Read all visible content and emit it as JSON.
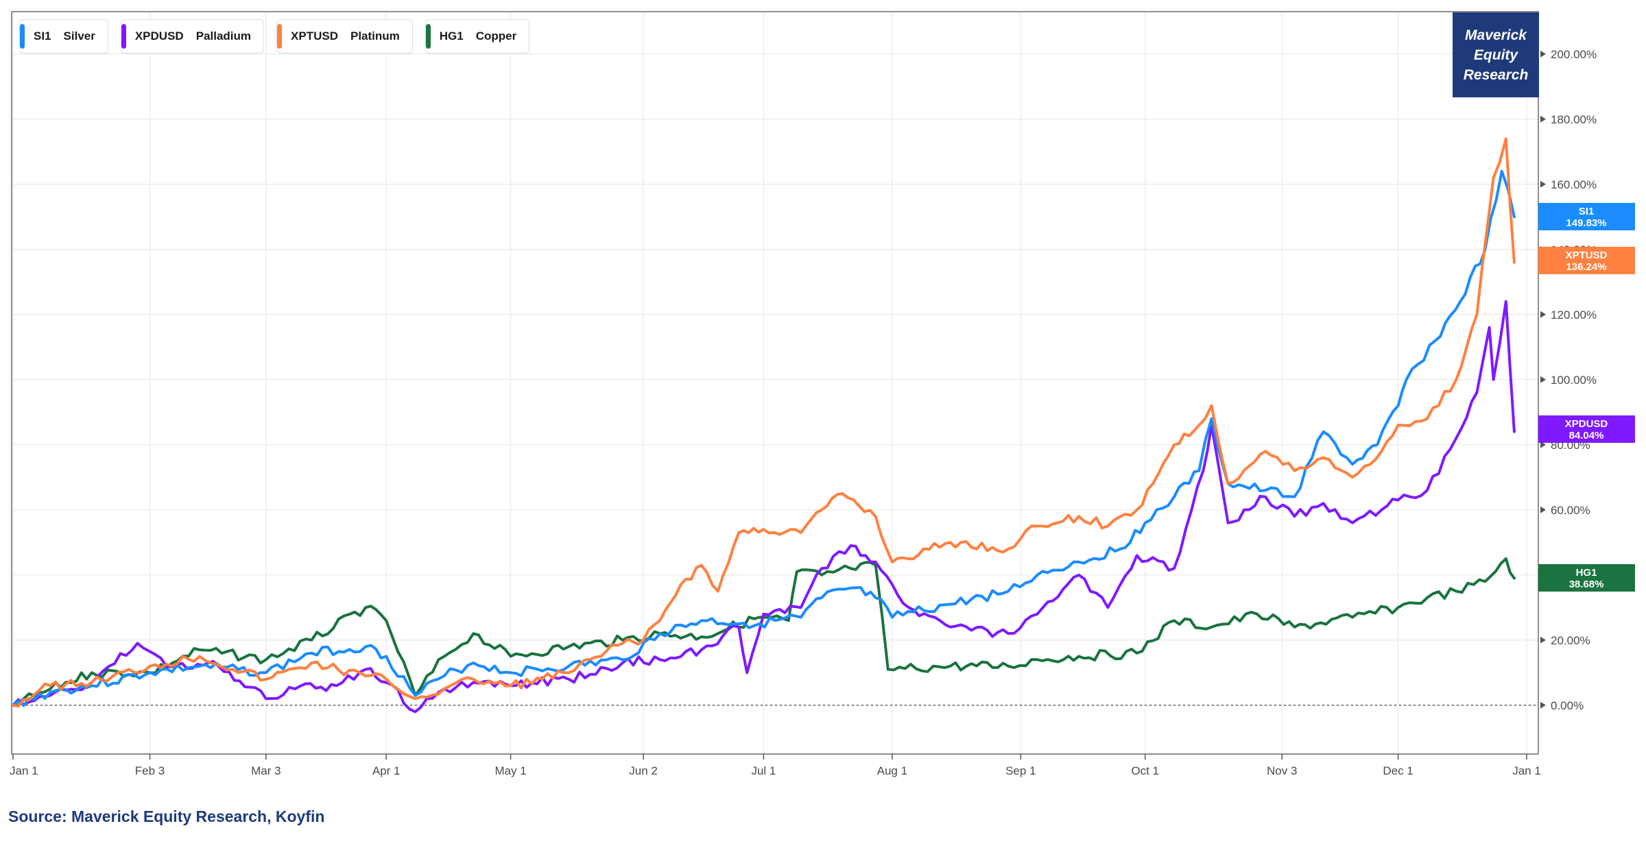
{
  "source_note": "Source: Maverick Equity Research, Koyfin",
  "brand": {
    "line1": "Maverick",
    "line2": "Equity",
    "line3": "Research"
  },
  "legend": [
    {
      "ticker": "SI1",
      "name": "Silver",
      "color": "#1a8cff"
    },
    {
      "ticker": "XPDUSD",
      "name": "Palladium",
      "color": "#7f1aff"
    },
    {
      "ticker": "XPTUSD",
      "name": "Platinum",
      "color": "#ff8040"
    },
    {
      "ticker": "HG1",
      "name": "Copper",
      "color": "#1a7340"
    }
  ],
  "chart_data": {
    "type": "line",
    "title": "",
    "xlabel": "",
    "ylabel": "",
    "x_ticks": [
      "Jan 1",
      "Feb 3",
      "Mar 3",
      "Apr 1",
      "May 1",
      "Jun 2",
      "Jul 1",
      "Aug 1",
      "Sep 1",
      "Oct 1",
      "Nov 3",
      "Dec 1",
      "Jan 1"
    ],
    "y_ticks": [
      "0.00%",
      "20.00%",
      "40.00%",
      "60.00%",
      "80.00%",
      "100.00%",
      "120.00%",
      "140.00%",
      "160.00%",
      "180.00%",
      "200.00%"
    ],
    "ylim": [
      -15,
      213
    ],
    "grid": true,
    "legend_position": "top-left",
    "baseline_value": 0,
    "series": [
      {
        "name": "SI1",
        "label": "Silver",
        "color": "#1a8cff",
        "last_label": "149.83%",
        "points": [
          [
            "2025-01-01",
            0
          ],
          [
            "2025-01-10",
            4
          ],
          [
            "2025-01-20",
            6
          ],
          [
            "2025-02-03",
            10
          ],
          [
            "2025-02-15",
            12
          ],
          [
            "2025-03-03",
            10
          ],
          [
            "2025-03-14",
            16
          ],
          [
            "2025-03-27",
            18
          ],
          [
            "2025-04-01",
            15
          ],
          [
            "2025-04-08",
            3
          ],
          [
            "2025-04-15",
            9
          ],
          [
            "2025-04-22",
            13
          ],
          [
            "2025-05-01",
            10
          ],
          [
            "2025-05-15",
            12
          ],
          [
            "2025-05-28",
            14
          ],
          [
            "2025-06-06",
            22
          ],
          [
            "2025-06-16",
            26
          ],
          [
            "2025-06-30",
            25
          ],
          [
            "2025-07-10",
            27
          ],
          [
            "2025-07-15",
            33
          ],
          [
            "2025-07-22",
            36
          ],
          [
            "2025-07-28",
            33
          ],
          [
            "2025-08-01",
            27
          ],
          [
            "2025-08-15",
            31
          ],
          [
            "2025-08-29",
            35
          ],
          [
            "2025-09-05",
            40
          ],
          [
            "2025-09-15",
            44
          ],
          [
            "2025-09-25",
            48
          ],
          [
            "2025-10-01",
            56
          ],
          [
            "2025-10-08",
            64
          ],
          [
            "2025-10-14",
            72
          ],
          [
            "2025-10-17",
            88
          ],
          [
            "2025-10-21",
            68
          ],
          [
            "2025-10-30",
            66
          ],
          [
            "2025-11-06",
            64
          ],
          [
            "2025-11-13",
            84
          ],
          [
            "2025-11-20",
            74
          ],
          [
            "2025-11-26",
            80
          ],
          [
            "2025-12-01",
            92
          ],
          [
            "2025-12-03",
            100
          ],
          [
            "2025-12-10",
            112
          ],
          [
            "2025-12-16",
            124
          ],
          [
            "2025-12-22",
            140
          ],
          [
            "2025-12-26",
            164
          ],
          [
            "2025-12-29",
            150
          ]
        ]
      },
      {
        "name": "XPDUSD",
        "label": "Palladium",
        "color": "#7f1aff",
        "last_label": "84.04%",
        "points": [
          [
            "2025-01-01",
            0
          ],
          [
            "2025-01-10",
            3
          ],
          [
            "2025-01-20",
            7
          ],
          [
            "2025-01-31",
            19
          ],
          [
            "2025-02-07",
            12
          ],
          [
            "2025-02-17",
            13
          ],
          [
            "2025-03-03",
            2
          ],
          [
            "2025-03-10",
            5
          ],
          [
            "2025-03-20",
            6
          ],
          [
            "2025-03-27",
            11
          ],
          [
            "2025-04-01",
            7
          ],
          [
            "2025-04-08",
            -2
          ],
          [
            "2025-04-15",
            5
          ],
          [
            "2025-04-22",
            7
          ],
          [
            "2025-05-01",
            6
          ],
          [
            "2025-05-15",
            8
          ],
          [
            "2025-05-28",
            13
          ],
          [
            "2025-06-06",
            14
          ],
          [
            "2025-06-16",
            17
          ],
          [
            "2025-06-25",
            24
          ],
          [
            "2025-06-27",
            10
          ],
          [
            "2025-07-01",
            28
          ],
          [
            "2025-07-10",
            30
          ],
          [
            "2025-07-15",
            42
          ],
          [
            "2025-07-22",
            49
          ],
          [
            "2025-07-28",
            44
          ],
          [
            "2025-08-05",
            30
          ],
          [
            "2025-08-15",
            24
          ],
          [
            "2025-08-29",
            22
          ],
          [
            "2025-09-05",
            28
          ],
          [
            "2025-09-15",
            40
          ],
          [
            "2025-09-22",
            30
          ],
          [
            "2025-09-29",
            46
          ],
          [
            "2025-10-08",
            42
          ],
          [
            "2025-10-15",
            72
          ],
          [
            "2025-10-17",
            86
          ],
          [
            "2025-10-21",
            56
          ],
          [
            "2025-10-30",
            64
          ],
          [
            "2025-11-06",
            58
          ],
          [
            "2025-11-13",
            62
          ],
          [
            "2025-11-20",
            56
          ],
          [
            "2025-11-27",
            60
          ],
          [
            "2025-12-01",
            63
          ],
          [
            "2025-12-08",
            66
          ],
          [
            "2025-12-15",
            82
          ],
          [
            "2025-12-20",
            96
          ],
          [
            "2025-12-23",
            116
          ],
          [
            "2025-12-24",
            100
          ],
          [
            "2025-12-27",
            124
          ],
          [
            "2025-12-29",
            84
          ]
        ]
      },
      {
        "name": "XPTUSD",
        "label": "Platinum",
        "color": "#ff8040",
        "last_label": "136.24%",
        "points": [
          [
            "2025-01-01",
            0
          ],
          [
            "2025-01-10",
            6
          ],
          [
            "2025-01-20",
            7
          ],
          [
            "2025-02-03",
            12
          ],
          [
            "2025-02-15",
            15
          ],
          [
            "2025-03-03",
            8
          ],
          [
            "2025-03-14",
            13
          ],
          [
            "2025-03-27",
            9
          ],
          [
            "2025-04-01",
            8
          ],
          [
            "2025-04-08",
            2
          ],
          [
            "2025-04-15",
            5
          ],
          [
            "2025-04-22",
            8
          ],
          [
            "2025-05-01",
            6
          ],
          [
            "2025-05-15",
            10
          ],
          [
            "2025-05-28",
            19
          ],
          [
            "2025-06-02",
            20
          ],
          [
            "2025-06-06",
            26
          ],
          [
            "2025-06-11",
            37
          ],
          [
            "2025-06-16",
            43
          ],
          [
            "2025-06-20",
            35
          ],
          [
            "2025-06-25",
            53
          ],
          [
            "2025-07-01",
            54
          ],
          [
            "2025-07-10",
            53
          ],
          [
            "2025-07-15",
            60
          ],
          [
            "2025-07-20",
            65
          ],
          [
            "2025-07-28",
            58
          ],
          [
            "2025-08-01",
            44
          ],
          [
            "2025-08-15",
            50
          ],
          [
            "2025-08-29",
            48
          ],
          [
            "2025-09-05",
            55
          ],
          [
            "2025-09-15",
            58
          ],
          [
            "2025-09-22",
            55
          ],
          [
            "2025-09-29",
            60
          ],
          [
            "2025-10-08",
            80
          ],
          [
            "2025-10-14",
            86
          ],
          [
            "2025-10-17",
            92
          ],
          [
            "2025-10-21",
            68
          ],
          [
            "2025-10-30",
            78
          ],
          [
            "2025-11-06",
            72
          ],
          [
            "2025-11-13",
            76
          ],
          [
            "2025-11-20",
            70
          ],
          [
            "2025-11-27",
            78
          ],
          [
            "2025-12-01",
            86
          ],
          [
            "2025-12-08",
            88
          ],
          [
            "2025-12-15",
            100
          ],
          [
            "2025-12-20",
            120
          ],
          [
            "2025-12-24",
            162
          ],
          [
            "2025-12-27",
            174
          ],
          [
            "2025-12-29",
            136
          ]
        ]
      },
      {
        "name": "HG1",
        "label": "Copper",
        "color": "#1a7340",
        "last_label": "38.68%",
        "points": [
          [
            "2025-01-01",
            0
          ],
          [
            "2025-01-10",
            5
          ],
          [
            "2025-01-20",
            10
          ],
          [
            "2025-02-03",
            10
          ],
          [
            "2025-02-15",
            17
          ],
          [
            "2025-03-03",
            14
          ],
          [
            "2025-03-14",
            20
          ],
          [
            "2025-03-27",
            30
          ],
          [
            "2025-04-01",
            26
          ],
          [
            "2025-04-08",
            3
          ],
          [
            "2025-04-15",
            15
          ],
          [
            "2025-04-22",
            22
          ],
          [
            "2025-05-01",
            15
          ],
          [
            "2025-05-15",
            18
          ],
          [
            "2025-05-28",
            20
          ],
          [
            "2025-06-06",
            22
          ],
          [
            "2025-06-16",
            21
          ],
          [
            "2025-06-30",
            27
          ],
          [
            "2025-07-07",
            26
          ],
          [
            "2025-07-09",
            41
          ],
          [
            "2025-07-15",
            40
          ],
          [
            "2025-07-22",
            42
          ],
          [
            "2025-07-28",
            43
          ],
          [
            "2025-07-31",
            11
          ],
          [
            "2025-08-15",
            12
          ],
          [
            "2025-08-29",
            12
          ],
          [
            "2025-09-05",
            14
          ],
          [
            "2025-09-15",
            15
          ],
          [
            "2025-09-29",
            16
          ],
          [
            "2025-10-08",
            26
          ],
          [
            "2025-10-17",
            24
          ],
          [
            "2025-10-28",
            28
          ],
          [
            "2025-11-06",
            24
          ],
          [
            "2025-11-20",
            27
          ],
          [
            "2025-12-01",
            30
          ],
          [
            "2025-12-08",
            33
          ],
          [
            "2025-12-15",
            35
          ],
          [
            "2025-12-22",
            38
          ],
          [
            "2025-12-27",
            45
          ],
          [
            "2025-12-29",
            39
          ]
        ]
      }
    ]
  }
}
